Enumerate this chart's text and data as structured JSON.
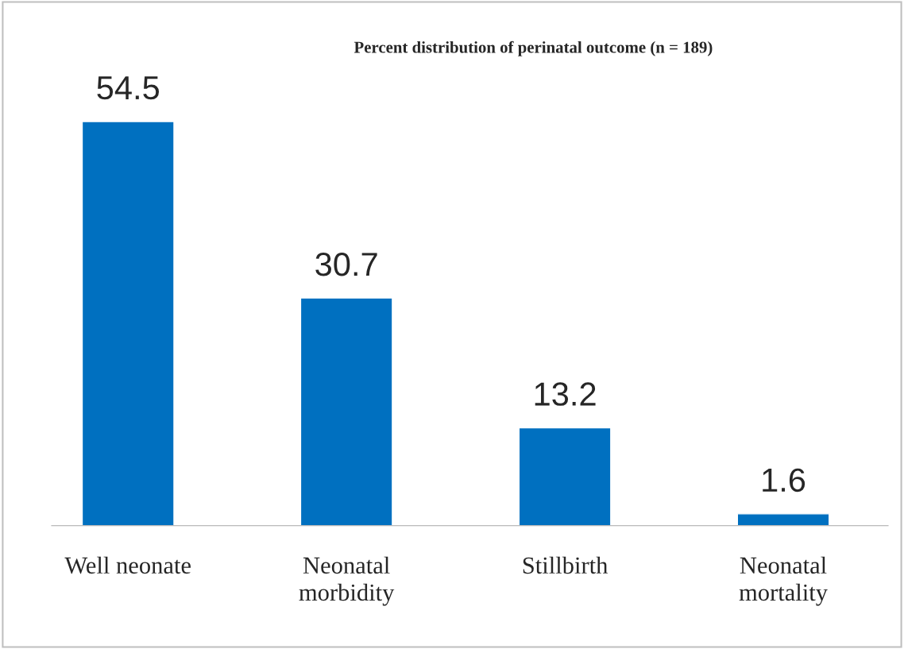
{
  "chart_data": {
    "type": "bar",
    "title": "Percent distribution of perinatal outcome (n = 189)",
    "categories": [
      "Well neonate",
      "Neonatal\nmorbidity",
      "Stillbirth",
      "Neonatal\nmortality"
    ],
    "values": [
      54.5,
      30.7,
      13.2,
      1.6
    ],
    "color": "#0070c0",
    "data_labels": true,
    "grid": false,
    "legend": false
  }
}
